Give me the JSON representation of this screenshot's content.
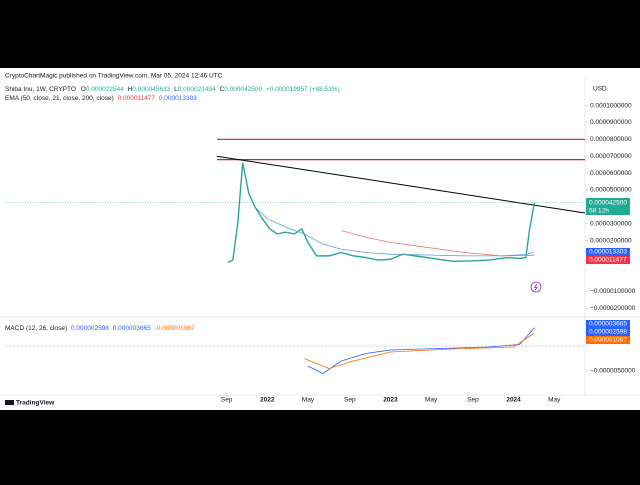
{
  "header": {
    "published": "CryptoChartMagic published on TradingView.com, Mar 05, 2024 12:46 UTC"
  },
  "legend": {
    "symbol": "Shiba Inu, 1W, CRYPTO",
    "ohlc": [
      {
        "key": "O",
        "value": "0.000022544"
      },
      {
        "key": "H",
        "value": "0.000045633"
      },
      {
        "key": "L",
        "value": "0.000021494"
      },
      {
        "key": "C",
        "value": "0.000042500"
      }
    ],
    "change": "+0.000019957 (+88.53%)",
    "ema": "EMA (50, close, 21, close, 200, close)",
    "ema_values": [
      "0.000011477",
      "0.000013303"
    ]
  },
  "macd_legend": {
    "label": "MACD (12, 26, close)",
    "values": [
      "0.000002598",
      "0.000003665",
      "-0.000001067"
    ]
  },
  "badges": {
    "price": "0.000042500",
    "countdown": "58 12h",
    "ema_blue": "0.000013303",
    "ema_red": "0.000011477",
    "macd": "0.000003665",
    "signal": "0.000002598",
    "hist": "0.000001067"
  },
  "currency": "USD",
  "footer": "TradingView",
  "chart_data": [
    {
      "type": "line",
      "xlim": [
        2019.87,
        2024.58
      ],
      "ylim": [
        -2.4e-05,
        0.0001163
      ],
      "yticks": [
        {
          "value": 0.0001,
          "label": "0.0001000000"
        },
        {
          "value": 9e-05,
          "label": "0.0000900000"
        },
        {
          "value": 8e-05,
          "label": "0.0000800000"
        },
        {
          "value": 7e-05,
          "label": "0.0000700000"
        },
        {
          "value": 6e-05,
          "label": "0.0000600000"
        },
        {
          "value": 5e-05,
          "label": "0.0000500000"
        },
        {
          "value": 3e-05,
          "label": "0.0000300000"
        },
        {
          "value": 2e-05,
          "label": "0.0000200000"
        },
        {
          "value": -1e-05,
          "label": "−0.0000100000"
        },
        {
          "value": -2e-05,
          "label": "−0.0000200000"
        }
      ],
      "series": [
        {
          "color": "#26a69a",
          "x": [
            2021.68,
            2021.72,
            2021.76,
            2021.8,
            2021.85,
            2021.9,
            2021.96,
            2022.02,
            2022.08,
            2022.15,
            2022.22,
            2022.28,
            2022.33,
            2022.4,
            2022.5,
            2022.6,
            2022.7,
            2022.8,
            2022.9,
            2023.0,
            2023.1,
            2023.2,
            2023.35,
            2023.5,
            2023.65,
            2023.8,
            2023.95,
            2024.05,
            2024.1,
            2024.13,
            2024.17
          ],
          "values": [
            7.2e-06,
            8.5e-06,
            3e-05,
            6.6e-05,
            4.8e-05,
            4e-05,
            3.3e-05,
            2.7e-05,
            2.4e-05,
            2.5e-05,
            2.4e-05,
            2.7e-05,
            1.9e-05,
            1.1e-05,
            1.1e-05,
            1.3e-05,
            1.1e-05,
            1e-05,
            8.5e-06,
            9e-06,
            1.2e-05,
            1.1e-05,
            9.5e-06,
            7.8e-06,
            8e-06,
            8.5e-06,
            1e-05,
            9.5e-06,
            1e-05,
            2.7e-05,
            4.25e-05
          ]
        },
        {
          "color": "#5b9bd5",
          "x": [
            2021.9,
            2022.0,
            2022.15,
            2022.3,
            2022.45,
            2022.6,
            2022.8,
            2023.0,
            2023.3,
            2023.6,
            2023.9,
            2024.1,
            2024.17
          ],
          "values": [
            4e-05,
            3.3e-05,
            2.8e-05,
            2.4e-05,
            1.8e-05,
            1.5e-05,
            1.3e-05,
            1.2e-05,
            1.15e-05,
            1.1e-05,
            1.1e-05,
            1.18e-05,
            1.3303e-05
          ]
        },
        {
          "color": "#e57373",
          "x": [
            2022.6,
            2022.8,
            2023.0,
            2023.3,
            2023.6,
            2023.9,
            2024.1,
            2024.17
          ],
          "values": [
            2.6e-05,
            2.2e-05,
            1.9e-05,
            1.6e-05,
            1.3e-05,
            1.1e-05,
            1.12e-05,
            1.1477e-05
          ]
        }
      ],
      "levels": [
        {
          "value": 8e-05,
          "color": "#b22833"
        },
        {
          "value": 6.8e-05,
          "color": "#b22833"
        }
      ],
      "trendline": {
        "x": [
          2021.59,
          2024.58
        ],
        "values": [
          7e-05,
          3.64e-05
        ],
        "color": "#000000"
      }
    },
    {
      "type": "line",
      "xlim": [
        2019.87,
        2024.58
      ],
      "ylim": [
        -9.8e-06,
        5.2e-06
      ],
      "yticks": [
        {
          "value": -5e-06,
          "label": "−0.0000050000"
        }
      ],
      "xticks": [
        {
          "value": 2021.67,
          "label": "Sep"
        },
        2022,
        {
          "value": 2022.33,
          "label": "May"
        },
        {
          "value": 2022.67,
          "label": "Sep"
        },
        2023,
        {
          "value": 2023.33,
          "label": "May"
        },
        {
          "value": 2023.67,
          "label": "Sep"
        },
        2024,
        {
          "value": 2024.33,
          "label": "May"
        }
      ],
      "series": [
        {
          "color": "#2962ff",
          "x": [
            2022.33,
            2022.45,
            2022.6,
            2022.8,
            2023.0,
            2023.4,
            2023.8,
            2024.05,
            2024.17
          ],
          "values": [
            -4e-06,
            -5.5e-06,
            -3e-06,
            -1.5e-06,
            -8e-07,
            -5e-07,
            -2e-07,
            3e-07,
            3.665e-06
          ]
        },
        {
          "color": "#ff6d00",
          "x": [
            2022.3,
            2022.5,
            2022.7,
            2023.0,
            2023.5,
            2024.0,
            2024.17
          ],
          "values": [
            -2.5e-06,
            -4.5e-06,
            -3e-06,
            -1.2e-06,
            -6e-07,
            -2e-07,
            2.598e-06
          ]
        }
      ],
      "levels": [
        {
          "value": 0,
          "color": "#9598a1"
        }
      ]
    }
  ]
}
